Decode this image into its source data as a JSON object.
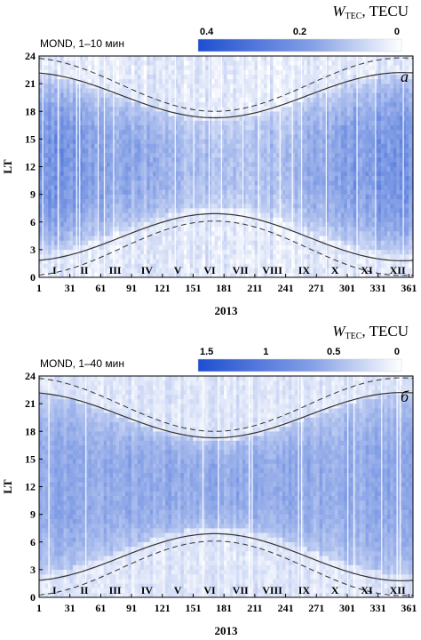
{
  "chart_data": [
    {
      "type": "heatmap",
      "panel_letter": "а",
      "station_label": "MOND, 1–10 мин",
      "colorbar": {
        "symbol": "W",
        "subscript": "TEC",
        "unit": ", TECU",
        "range": [
          0.4,
          0
        ],
        "tick_labels": [
          "0.4",
          "0.2",
          "0"
        ],
        "tick_values": [
          0.4,
          0.2,
          0
        ],
        "color_high": "#1d4fd0",
        "color_low": "#ffffff"
      },
      "xlabel": "2013",
      "ylabel": "LT",
      "xlim": [
        1,
        365
      ],
      "ylim": [
        0,
        24
      ],
      "xticks": [
        1,
        31,
        61,
        91,
        121,
        151,
        181,
        211,
        241,
        271,
        301,
        331,
        361
      ],
      "yticks": [
        0,
        3,
        6,
        9,
        12,
        15,
        18,
        21,
        24
      ],
      "months": [
        "I",
        "II",
        "III",
        "IV",
        "V",
        "VI",
        "VII",
        "VIII",
        "IX",
        "X",
        "XI",
        "XII"
      ],
      "month_centers": [
        16,
        45,
        75,
        106,
        136,
        167,
        197,
        228,
        259,
        289,
        320,
        350
      ],
      "sunrise_solid": {
        "winter": 6.9,
        "summer": 1.8,
        "peak_day": 172
      },
      "sunset_solid": {
        "winter": 17.3,
        "summer": 22.2,
        "peak_day": 172
      },
      "sunrise_dashed": {
        "winter": 6.1,
        "summer": 0.2,
        "peak_day": 172
      },
      "sunset_dashed": {
        "winter": 18.0,
        "summer": 23.8,
        "peak_day": 172
      },
      "intensity": {
        "day": 0.14,
        "night": 0.05,
        "winter_day": 0.24,
        "noise": 0.06
      }
    },
    {
      "type": "heatmap",
      "panel_letter": "б",
      "station_label": "MOND, 1–40 мин",
      "colorbar": {
        "symbol": "W",
        "subscript": "TEC",
        "unit": ", TECU",
        "range": [
          1.5,
          0
        ],
        "tick_labels": [
          "1.5",
          "1",
          "0.5",
          "0"
        ],
        "tick_values": [
          1.5,
          1,
          0.5,
          0
        ],
        "color_high": "#1d4fd0",
        "color_low": "#ffffff"
      },
      "xlabel": "2013",
      "ylabel": "LT",
      "xlim": [
        1,
        365
      ],
      "ylim": [
        0,
        24
      ],
      "xticks": [
        1,
        31,
        61,
        91,
        121,
        151,
        181,
        211,
        241,
        271,
        301,
        331,
        361
      ],
      "yticks": [
        0,
        3,
        6,
        9,
        12,
        15,
        18,
        21,
        24
      ],
      "months": [
        "I",
        "II",
        "III",
        "IV",
        "V",
        "VI",
        "VII",
        "VIII",
        "IX",
        "X",
        "XI",
        "XII"
      ],
      "month_centers": [
        16,
        45,
        75,
        106,
        136,
        167,
        197,
        228,
        259,
        289,
        320,
        350
      ],
      "sunrise_solid": {
        "winter": 6.9,
        "summer": 1.8,
        "peak_day": 172
      },
      "sunset_solid": {
        "winter": 17.3,
        "summer": 22.2,
        "peak_day": 172
      },
      "sunrise_dashed": {
        "winter": 6.1,
        "summer": 0.2,
        "peak_day": 172
      },
      "sunset_dashed": {
        "winter": 18.0,
        "summer": 23.8,
        "peak_day": 172
      },
      "intensity": {
        "day": 0.72,
        "night": 0.22,
        "winter_day": 0.72,
        "noise": 0.18
      }
    }
  ]
}
